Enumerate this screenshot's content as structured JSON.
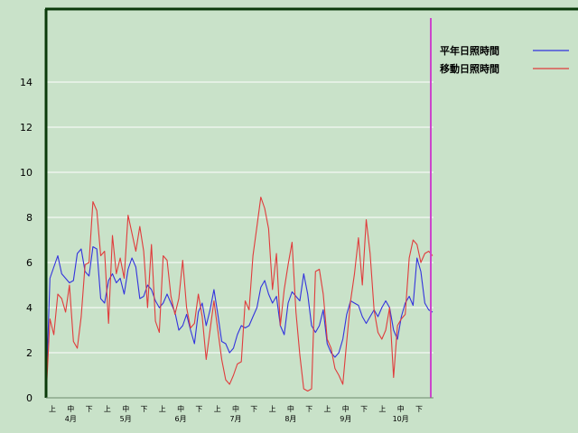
{
  "chart_data": {
    "type": "line",
    "ylim": [
      0,
      16
    ],
    "y_ticks": [
      0,
      2,
      4,
      6,
      8,
      10,
      12,
      14
    ],
    "grid": true,
    "legend_placement": "top-right",
    "x_period_labels": [
      "上",
      "中",
      "下",
      "上",
      "中",
      "下",
      "上",
      "中",
      "下",
      "上",
      "中",
      "下",
      "上",
      "中",
      "下",
      "上",
      "中",
      "下",
      "上",
      "中",
      "下"
    ],
    "x_month_labels": [
      "4月",
      "5月",
      "6月",
      "7月",
      "8月",
      "9月",
      "10月"
    ],
    "colors": {
      "series1": "#3333dd",
      "series2": "#e03c3c",
      "marker": "#cc44cc",
      "frame": "#0a3a0a",
      "grid": "#ffffff"
    },
    "series": [
      {
        "name": "平年日照時間",
        "values": [
          0.1,
          5.3,
          5.8,
          6.3,
          5.5,
          5.3,
          5.1,
          5.2,
          6.4,
          6.6,
          5.6,
          5.4,
          6.7,
          6.6,
          4.4,
          4.2,
          5.2,
          5.5,
          5.1,
          5.3,
          4.6,
          5.7,
          6.2,
          5.8,
          4.4,
          4.5,
          5.0,
          4.8,
          4.3,
          4.0,
          4.2,
          4.6,
          4.2,
          3.8,
          3.0,
          3.2,
          3.7,
          3.0,
          2.4,
          3.8,
          4.2,
          3.2,
          3.9,
          4.8,
          3.7,
          2.5,
          2.4,
          2.0,
          2.2,
          2.8,
          3.2,
          3.1,
          3.2,
          3.6,
          4.0,
          4.9,
          5.2,
          4.6,
          4.2,
          4.5,
          3.2,
          2.8,
          4.2,
          4.7,
          4.5,
          4.3,
          5.5,
          4.6,
          3.2,
          2.9,
          3.2,
          3.9,
          2.4,
          2.0,
          1.8,
          2.0,
          2.6,
          3.7,
          4.3,
          4.2,
          4.1,
          3.6,
          3.3,
          3.6,
          3.9,
          3.6,
          4.0,
          4.3,
          4.0,
          3.0,
          2.6,
          3.6,
          4.2,
          4.5,
          4.1,
          6.2,
          5.6,
          4.2,
          3.9,
          3.8
        ]
      },
      {
        "name": "移動日照時間",
        "values": [
          0.0,
          3.5,
          2.8,
          4.6,
          4.4,
          3.8,
          5.0,
          2.5,
          2.2,
          3.6,
          5.9,
          6.0,
          8.7,
          8.3,
          6.3,
          6.5,
          3.3,
          7.2,
          5.5,
          6.2,
          5.3,
          8.1,
          7.3,
          6.5,
          7.6,
          6.5,
          4.0,
          6.8,
          3.4,
          2.9,
          6.3,
          6.1,
          4.5,
          3.7,
          4.4,
          6.1,
          4.0,
          3.1,
          3.3,
          4.6,
          3.6,
          1.7,
          3.0,
          4.3,
          3.0,
          1.7,
          0.8,
          0.6,
          1.0,
          1.5,
          1.6,
          4.3,
          3.9,
          6.3,
          7.6,
          8.9,
          8.4,
          7.5,
          4.8,
          6.4,
          3.2,
          4.8,
          5.9,
          6.9,
          3.8,
          1.9,
          0.4,
          0.3,
          0.4,
          5.6,
          5.7,
          4.6,
          2.6,
          2.2,
          1.3,
          1.0,
          0.6,
          2.5,
          4.3,
          5.5,
          7.1,
          5.0,
          7.9,
          6.4,
          3.9,
          2.9,
          2.6,
          3.0,
          4.0,
          0.9,
          3.2,
          3.5,
          3.7,
          6.2,
          7.0,
          6.8,
          6.0,
          6.4,
          6.5,
          6.3
        ]
      }
    ]
  }
}
